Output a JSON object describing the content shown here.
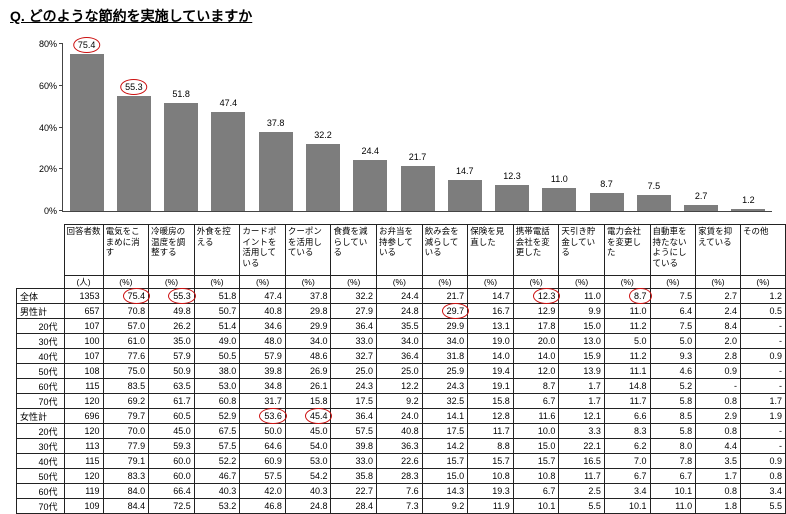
{
  "page_title": "Q. どのような節約を実施していますか",
  "chart_data": {
    "type": "bar",
    "title": "Q. どのような節約を実施していますか",
    "categories": [
      "電気をこまめに消す",
      "冷暖房の温度を調整する",
      "外食を控える",
      "カードポイントを活用している",
      "クーポンを活用している",
      "食費を減らしている",
      "お弁当を持参している",
      "飲み会を減らしている",
      "保険を見直した",
      "携帯電話会社を変更した",
      "天引き貯金している",
      "電力会社を変更した",
      "自動車を持たないようにしている",
      "家賃を抑えている",
      "その他"
    ],
    "values": [
      75.4,
      55.3,
      51.8,
      47.4,
      37.8,
      32.2,
      24.4,
      21.7,
      14.7,
      12.3,
      11.0,
      8.7,
      7.5,
      2.7,
      1.2
    ],
    "xlabel": "",
    "ylabel": "",
    "ylim": [
      0,
      80
    ],
    "ytick_values": [
      0,
      20,
      40,
      60,
      80
    ],
    "grid": false,
    "legend": "none",
    "bar_color": "#7d7d7d",
    "highlight_color": "#cc1111",
    "circled_value_indices": [
      0,
      1
    ]
  },
  "table": {
    "count_header": "回答者数",
    "count_unit": "(人)",
    "percent_unit": "(%)",
    "rows": [
      {
        "label": "全体",
        "count": "1353",
        "values": [
          "75.4",
          "55.3",
          "51.8",
          "47.4",
          "37.8",
          "32.2",
          "24.4",
          "21.7",
          "14.7",
          "12.3",
          "11.0",
          "8.7",
          "7.5",
          "2.7",
          "1.2"
        ],
        "circled": [
          0,
          1,
          9,
          11
        ]
      },
      {
        "label": "男性計",
        "count": "657",
        "values": [
          "70.8",
          "49.8",
          "50.7",
          "40.8",
          "29.8",
          "27.9",
          "24.8",
          "29.7",
          "16.7",
          "12.9",
          "9.9",
          "11.0",
          "6.4",
          "2.4",
          "0.5"
        ],
        "circled": [
          7
        ]
      },
      {
        "label": "20代",
        "count": "107",
        "values": [
          "57.0",
          "26.2",
          "51.4",
          "34.6",
          "29.9",
          "36.4",
          "35.5",
          "29.9",
          "13.1",
          "17.8",
          "15.0",
          "11.2",
          "7.5",
          "8.4",
          "-"
        ],
        "circled": []
      },
      {
        "label": "30代",
        "count": "100",
        "values": [
          "61.0",
          "35.0",
          "49.0",
          "48.0",
          "34.0",
          "33.0",
          "34.0",
          "34.0",
          "19.0",
          "20.0",
          "13.0",
          "5.0",
          "5.0",
          "2.0",
          "-"
        ],
        "circled": []
      },
      {
        "label": "40代",
        "count": "107",
        "values": [
          "77.6",
          "57.9",
          "50.5",
          "57.9",
          "48.6",
          "32.7",
          "36.4",
          "31.8",
          "14.0",
          "14.0",
          "15.9",
          "11.2",
          "9.3",
          "2.8",
          "0.9"
        ],
        "circled": []
      },
      {
        "label": "50代",
        "count": "108",
        "values": [
          "75.0",
          "50.9",
          "38.0",
          "39.8",
          "26.9",
          "25.0",
          "25.0",
          "25.9",
          "19.4",
          "12.0",
          "13.9",
          "11.1",
          "4.6",
          "0.9",
          "-"
        ],
        "circled": []
      },
      {
        "label": "60代",
        "count": "115",
        "values": [
          "83.5",
          "63.5",
          "53.0",
          "34.8",
          "26.1",
          "24.3",
          "12.2",
          "24.3",
          "19.1",
          "8.7",
          "1.7",
          "14.8",
          "5.2",
          "-",
          "-"
        ],
        "circled": []
      },
      {
        "label": "70代",
        "count": "120",
        "values": [
          "69.2",
          "61.7",
          "60.8",
          "31.7",
          "15.8",
          "17.5",
          "9.2",
          "32.5",
          "15.8",
          "6.7",
          "1.7",
          "11.7",
          "5.8",
          "0.8",
          "1.7"
        ],
        "circled": []
      },
      {
        "label": "女性計",
        "count": "696",
        "values": [
          "79.7",
          "60.5",
          "52.9",
          "53.6",
          "45.4",
          "36.4",
          "24.0",
          "14.1",
          "12.8",
          "11.6",
          "12.1",
          "6.6",
          "8.5",
          "2.9",
          "1.9"
        ],
        "circled": [
          3,
          4
        ]
      },
      {
        "label": "20代",
        "count": "120",
        "values": [
          "70.0",
          "45.0",
          "67.5",
          "50.0",
          "45.0",
          "57.5",
          "40.8",
          "17.5",
          "11.7",
          "10.0",
          "3.3",
          "8.3",
          "5.8",
          "0.8",
          "-"
        ],
        "circled": []
      },
      {
        "label": "30代",
        "count": "113",
        "values": [
          "77.9",
          "59.3",
          "57.5",
          "64.6",
          "54.0",
          "39.8",
          "36.3",
          "14.2",
          "8.8",
          "15.0",
          "22.1",
          "6.2",
          "8.0",
          "4.4",
          "-"
        ],
        "circled": []
      },
      {
        "label": "40代",
        "count": "115",
        "values": [
          "79.1",
          "60.0",
          "52.2",
          "60.9",
          "53.0",
          "33.0",
          "22.6",
          "15.7",
          "15.7",
          "15.7",
          "16.5",
          "7.0",
          "7.8",
          "3.5",
          "0.9"
        ],
        "circled": []
      },
      {
        "label": "50代",
        "count": "120",
        "values": [
          "83.3",
          "60.0",
          "46.7",
          "57.5",
          "54.2",
          "35.8",
          "28.3",
          "15.0",
          "10.8",
          "10.8",
          "11.7",
          "6.7",
          "6.7",
          "1.7",
          "0.8"
        ],
        "circled": []
      },
      {
        "label": "60代",
        "count": "119",
        "values": [
          "84.0",
          "66.4",
          "40.3",
          "42.0",
          "40.3",
          "22.7",
          "7.6",
          "14.3",
          "19.3",
          "6.7",
          "2.5",
          "3.4",
          "10.1",
          "0.8",
          "3.4"
        ],
        "circled": []
      },
      {
        "label": "70代",
        "count": "109",
        "values": [
          "84.4",
          "72.5",
          "53.2",
          "46.8",
          "24.8",
          "28.4",
          "7.3",
          "9.2",
          "11.9",
          "10.1",
          "5.5",
          "10.1",
          "11.0",
          "1.8",
          "5.5"
        ],
        "circled": []
      }
    ]
  }
}
